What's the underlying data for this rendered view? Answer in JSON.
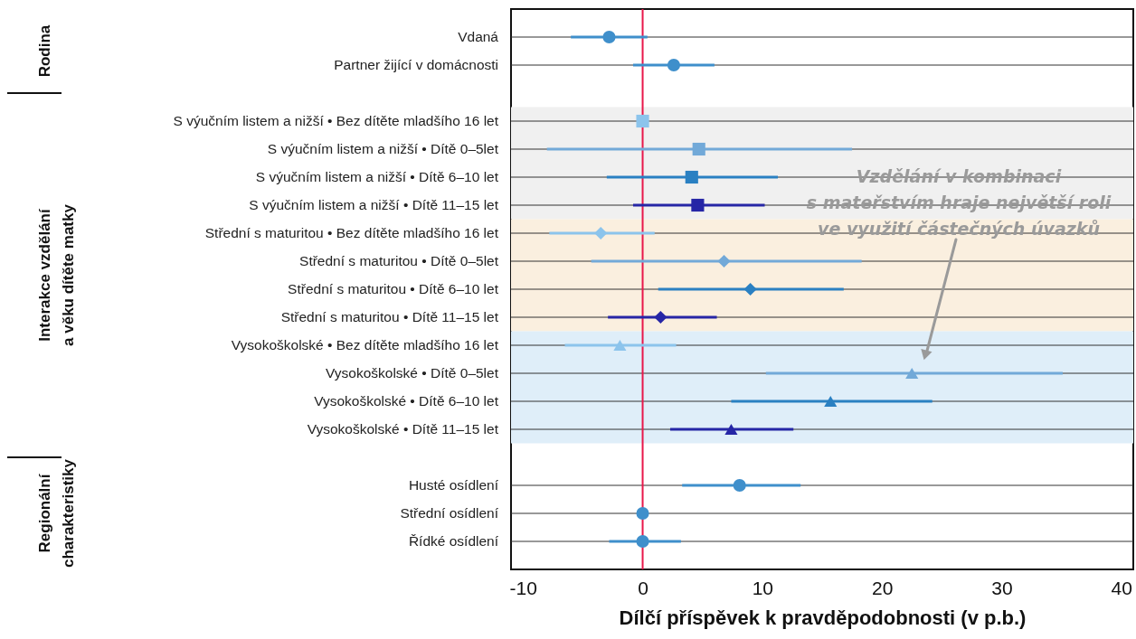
{
  "chart_data": {
    "type": "scatter",
    "orientation": "horizontal",
    "xlabel": "Dílčí příspěvek k pravděpodobnosti (v p.b.)",
    "categories": [
      "Vdaná",
      "Partner žijící v domácnosti",
      null,
      "S výučním listem a nižší • Bez dítěte mladšího 16 let",
      "S výučním listem a nižší • Dítě 0–5let",
      "S výučním listem a nižší • Dítě 6–10 let",
      "S výučním listem a nižší • Dítě 11–15 let",
      "Střední s maturitou • Bez dítěte mladšího 16 let",
      "Střední s maturitou • Dítě 0–5let",
      "Střední s maturitou • Dítě 6–10 let",
      "Střední s maturitou • Dítě 11–15 let",
      "Vysokoškolské • Bez dítěte mladšího 16 let",
      "Vysokoškolské • Dítě 0–5let",
      "Vysokoškolské • Dítě 6–10 let",
      "Vysokoškolské • Dítě 11–15 let",
      null,
      "Husté osídlení",
      "Střední osídlení",
      "Řídké osídlení"
    ],
    "series": [
      {
        "marker": "circle",
        "values": [
          -2.8,
          2.6,
          null,
          null,
          null,
          null,
          null,
          null,
          null,
          null,
          null,
          null,
          null,
          null,
          null,
          null,
          8.1,
          0.0,
          0.0
        ],
        "colors": [
          "#3f8fcb",
          "#3f8fcb",
          null,
          null,
          null,
          null,
          null,
          null,
          null,
          null,
          null,
          null,
          null,
          null,
          null,
          null,
          "#3f8fcb",
          "#3f8fcb",
          "#3f8fcb"
        ],
        "errors": [
          [
            -6.0,
            0.4
          ],
          [
            -0.8,
            6.0
          ],
          null,
          null,
          null,
          null,
          null,
          null,
          null,
          null,
          null,
          null,
          null,
          null,
          null,
          null,
          [
            3.3,
            13.2
          ],
          null,
          [
            -2.8,
            3.2
          ]
        ]
      },
      {
        "marker": "square",
        "values": [
          null,
          null,
          null,
          0.0,
          4.7,
          4.1,
          4.6,
          null,
          null,
          null,
          null,
          null,
          null,
          null,
          null,
          null,
          null,
          null,
          null
        ],
        "colors": [
          null,
          null,
          null,
          "#8cc4ec",
          "#72a9d8",
          "#2a80c2",
          "#2626a6",
          null,
          null,
          null,
          null,
          null,
          null,
          null,
          null,
          null,
          null,
          null,
          null
        ],
        "errors": [
          null,
          null,
          null,
          null,
          [
            -8.0,
            17.5
          ],
          [
            -3.0,
            11.3
          ],
          [
            -0.8,
            10.2
          ],
          null,
          null,
          null,
          null,
          null,
          null,
          null,
          null,
          null,
          null,
          null,
          null
        ]
      },
      {
        "marker": "diamond",
        "values": [
          null,
          null,
          null,
          null,
          null,
          null,
          null,
          -3.5,
          6.8,
          9.0,
          1.5,
          null,
          null,
          null,
          null,
          null,
          null,
          null,
          null
        ],
        "colors": [
          null,
          null,
          null,
          null,
          null,
          null,
          null,
          "#8cc4ec",
          "#72a9d8",
          "#2a80c2",
          "#2626a6",
          null,
          null,
          null,
          null,
          null,
          null,
          null,
          null
        ],
        "errors": [
          null,
          null,
          null,
          null,
          null,
          null,
          null,
          [
            -7.8,
            1.0
          ],
          [
            -4.3,
            18.3
          ],
          [
            1.3,
            16.8
          ],
          [
            -2.9,
            6.2
          ],
          null,
          null,
          null,
          null,
          null,
          null,
          null,
          null
        ]
      },
      {
        "marker": "triangle",
        "values": [
          null,
          null,
          null,
          null,
          null,
          null,
          null,
          null,
          null,
          null,
          null,
          -1.9,
          22.5,
          15.7,
          7.4,
          null,
          null,
          null,
          null
        ],
        "colors": [
          null,
          null,
          null,
          null,
          null,
          null,
          null,
          null,
          null,
          null,
          null,
          "#8cc4ec",
          "#72a9d8",
          "#2a80c2",
          "#2626a6",
          null,
          null,
          null,
          null
        ],
        "errors": [
          null,
          null,
          null,
          null,
          null,
          null,
          null,
          null,
          null,
          null,
          null,
          [
            -6.5,
            2.8
          ],
          [
            10.3,
            35.1
          ],
          [
            7.4,
            24.2
          ],
          [
            2.3,
            12.6
          ],
          null,
          null,
          null,
          null
        ]
      }
    ],
    "xlim": [
      -11,
      41
    ],
    "xticks": [
      -10,
      0,
      10,
      20,
      30,
      40
    ],
    "grid": "y",
    "ref_lines": [
      {
        "axis": "x",
        "value": 0,
        "color": "#e8174a"
      }
    ],
    "bands": [
      {
        "axis": "y",
        "from": "S výučním listem a nižší • Bez dítěte mladšího 16 let",
        "to": "S výučním listem a nižší • Dítě 11–15 let",
        "color": "#f0f0f0"
      },
      {
        "axis": "y",
        "from": "Střední s maturitou • Bez dítěte mladšího 16 let",
        "to": "Střední s maturitou • Dítě 11–15 let",
        "color": "#faefdf"
      },
      {
        "axis": "y",
        "from": "Vysokoškolské • Bez dítěte mladšího 16 let",
        "to": "Vysokoškolské • Dítě 11–15 let",
        "color": "#dfeef9"
      }
    ],
    "annotations": [
      "Rodina",
      "Interakce vzdělání\na věku dítěte matky",
      "Regionální\ncharakteristiky",
      "Vzdělání v kombinaci\ns mateřstvím hraje největší roli\nve využití částečných úvazků"
    ]
  }
}
